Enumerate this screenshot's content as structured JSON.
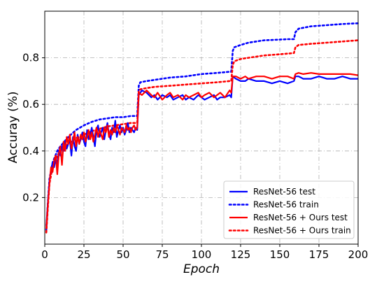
{
  "chart_data": {
    "type": "line",
    "xlabel": "Epoch",
    "ylabel": "Accuray (%)",
    "xlim": [
      0,
      200
    ],
    "ylim": [
      0.0,
      1.0
    ],
    "xticks": [
      "0",
      "25",
      "50",
      "75",
      "100",
      "125",
      "150",
      "175",
      "200"
    ],
    "yticks": [
      "0.2",
      "0.4",
      "0.6",
      "0.8"
    ],
    "grid": true,
    "legend_position": "lower-right",
    "colors": {
      "resnet": "#0000ff",
      "ours": "#ff0000"
    },
    "series": [
      {
        "name": "ResNet-56 test",
        "color": "#0000ff",
        "style": "solid",
        "x": [
          1,
          2,
          3,
          4,
          5,
          6,
          7,
          8,
          9,
          10,
          11,
          12,
          13,
          14,
          15,
          16,
          17,
          18,
          19,
          20,
          21,
          22,
          23,
          24,
          25,
          26,
          27,
          28,
          29,
          30,
          31,
          32,
          33,
          34,
          35,
          36,
          37,
          38,
          39,
          40,
          41,
          42,
          43,
          44,
          45,
          46,
          47,
          48,
          49,
          50,
          51,
          52,
          53,
          54,
          55,
          56,
          57,
          58,
          59,
          60,
          62,
          65,
          68,
          70,
          72,
          75,
          78,
          80,
          82,
          85,
          88,
          90,
          92,
          95,
          98,
          100,
          102,
          105,
          108,
          110,
          112,
          115,
          118,
          119,
          120,
          122,
          125,
          128,
          130,
          135,
          140,
          145,
          150,
          155,
          159,
          160,
          162,
          165,
          170,
          175,
          180,
          185,
          190,
          195,
          200
        ],
        "y": [
          0.08,
          0.18,
          0.27,
          0.32,
          0.35,
          0.33,
          0.37,
          0.34,
          0.4,
          0.38,
          0.42,
          0.4,
          0.44,
          0.41,
          0.43,
          0.45,
          0.38,
          0.46,
          0.42,
          0.4,
          0.47,
          0.43,
          0.45,
          0.48,
          0.44,
          0.42,
          0.49,
          0.45,
          0.47,
          0.5,
          0.46,
          0.42,
          0.49,
          0.51,
          0.46,
          0.48,
          0.5,
          0.45,
          0.49,
          0.52,
          0.47,
          0.45,
          0.5,
          0.48,
          0.53,
          0.46,
          0.49,
          0.51,
          0.48,
          0.5,
          0.47,
          0.49,
          0.52,
          0.48,
          0.5,
          0.49,
          0.48,
          0.5,
          0.49,
          0.64,
          0.66,
          0.65,
          0.63,
          0.64,
          0.62,
          0.64,
          0.63,
          0.64,
          0.62,
          0.63,
          0.64,
          0.62,
          0.63,
          0.62,
          0.64,
          0.63,
          0.62,
          0.63,
          0.64,
          0.62,
          0.63,
          0.63,
          0.64,
          0.63,
          0.72,
          0.71,
          0.7,
          0.7,
          0.71,
          0.7,
          0.7,
          0.69,
          0.7,
          0.69,
          0.7,
          0.72,
          0.72,
          0.71,
          0.71,
          0.72,
          0.71,
          0.71,
          0.72,
          0.71,
          0.71
        ]
      },
      {
        "name": "ResNet-56 train",
        "color": "#0000ff",
        "style": "dotted",
        "x": [
          1,
          2,
          3,
          5,
          8,
          10,
          15,
          20,
          25,
          30,
          35,
          40,
          45,
          50,
          55,
          59,
          60,
          61,
          65,
          70,
          80,
          90,
          100,
          110,
          118,
          119,
          120,
          121,
          125,
          130,
          140,
          150,
          155,
          159,
          160,
          162,
          170,
          180,
          190,
          200
        ],
        "y": [
          0.06,
          0.18,
          0.28,
          0.35,
          0.4,
          0.42,
          0.46,
          0.49,
          0.51,
          0.525,
          0.535,
          0.54,
          0.545,
          0.545,
          0.55,
          0.55,
          0.68,
          0.695,
          0.7,
          0.705,
          0.715,
          0.72,
          0.73,
          0.735,
          0.74,
          0.74,
          0.83,
          0.845,
          0.855,
          0.865,
          0.875,
          0.878,
          0.88,
          0.88,
          0.91,
          0.925,
          0.935,
          0.94,
          0.945,
          0.948
        ]
      },
      {
        "name": "ResNet-56 + Ours test",
        "color": "#ff0000",
        "style": "solid",
        "x": [
          1,
          2,
          3,
          4,
          5,
          6,
          7,
          8,
          9,
          10,
          11,
          12,
          13,
          14,
          15,
          16,
          17,
          18,
          19,
          20,
          21,
          22,
          23,
          24,
          25,
          26,
          27,
          28,
          29,
          30,
          31,
          32,
          33,
          34,
          35,
          36,
          37,
          38,
          39,
          40,
          41,
          42,
          43,
          44,
          45,
          46,
          47,
          48,
          49,
          50,
          51,
          52,
          53,
          54,
          55,
          56,
          57,
          58,
          59,
          60,
          62,
          65,
          68,
          70,
          72,
          75,
          78,
          80,
          82,
          85,
          88,
          90,
          92,
          95,
          98,
          100,
          102,
          105,
          108,
          110,
          112,
          115,
          118,
          119,
          120,
          122,
          125,
          128,
          130,
          135,
          140,
          145,
          150,
          155,
          159,
          160,
          162,
          165,
          170,
          175,
          180,
          185,
          190,
          195,
          200
        ],
        "y": [
          0.07,
          0.17,
          0.26,
          0.33,
          0.31,
          0.36,
          0.38,
          0.3,
          0.39,
          0.42,
          0.34,
          0.44,
          0.4,
          0.46,
          0.43,
          0.47,
          0.41,
          0.44,
          0.48,
          0.42,
          0.46,
          0.43,
          0.47,
          0.45,
          0.48,
          0.44,
          0.46,
          0.49,
          0.45,
          0.48,
          0.44,
          0.47,
          0.5,
          0.46,
          0.49,
          0.47,
          0.45,
          0.5,
          0.48,
          0.51,
          0.46,
          0.49,
          0.47,
          0.5,
          0.48,
          0.51,
          0.49,
          0.47,
          0.5,
          0.49,
          0.48,
          0.51,
          0.49,
          0.5,
          0.48,
          0.5,
          0.51,
          0.49,
          0.5,
          0.65,
          0.64,
          0.66,
          0.64,
          0.63,
          0.65,
          0.62,
          0.64,
          0.65,
          0.63,
          0.64,
          0.62,
          0.64,
          0.63,
          0.64,
          0.65,
          0.63,
          0.64,
          0.65,
          0.63,
          0.64,
          0.65,
          0.63,
          0.66,
          0.65,
          0.72,
          0.72,
          0.71,
          0.72,
          0.71,
          0.72,
          0.72,
          0.71,
          0.72,
          0.72,
          0.71,
          0.73,
          0.735,
          0.73,
          0.735,
          0.73,
          0.73,
          0.73,
          0.73,
          0.73,
          0.725
        ]
      },
      {
        "name": "ResNet-56 + Ours train",
        "color": "#ff0000",
        "style": "dotted",
        "x": [
          1,
          2,
          3,
          5,
          8,
          10,
          15,
          20,
          25,
          30,
          35,
          40,
          45,
          50,
          55,
          59,
          60,
          61,
          65,
          70,
          80,
          90,
          100,
          110,
          118,
          119,
          120,
          121,
          125,
          130,
          140,
          150,
          155,
          159,
          160,
          162,
          170,
          180,
          190,
          200
        ],
        "y": [
          0.05,
          0.16,
          0.26,
          0.33,
          0.38,
          0.4,
          0.43,
          0.455,
          0.47,
          0.485,
          0.495,
          0.505,
          0.51,
          0.515,
          0.52,
          0.52,
          0.655,
          0.665,
          0.67,
          0.675,
          0.68,
          0.685,
          0.69,
          0.695,
          0.7,
          0.7,
          0.77,
          0.785,
          0.795,
          0.8,
          0.81,
          0.815,
          0.818,
          0.82,
          0.845,
          0.855,
          0.86,
          0.865,
          0.87,
          0.875
        ]
      }
    ]
  }
}
